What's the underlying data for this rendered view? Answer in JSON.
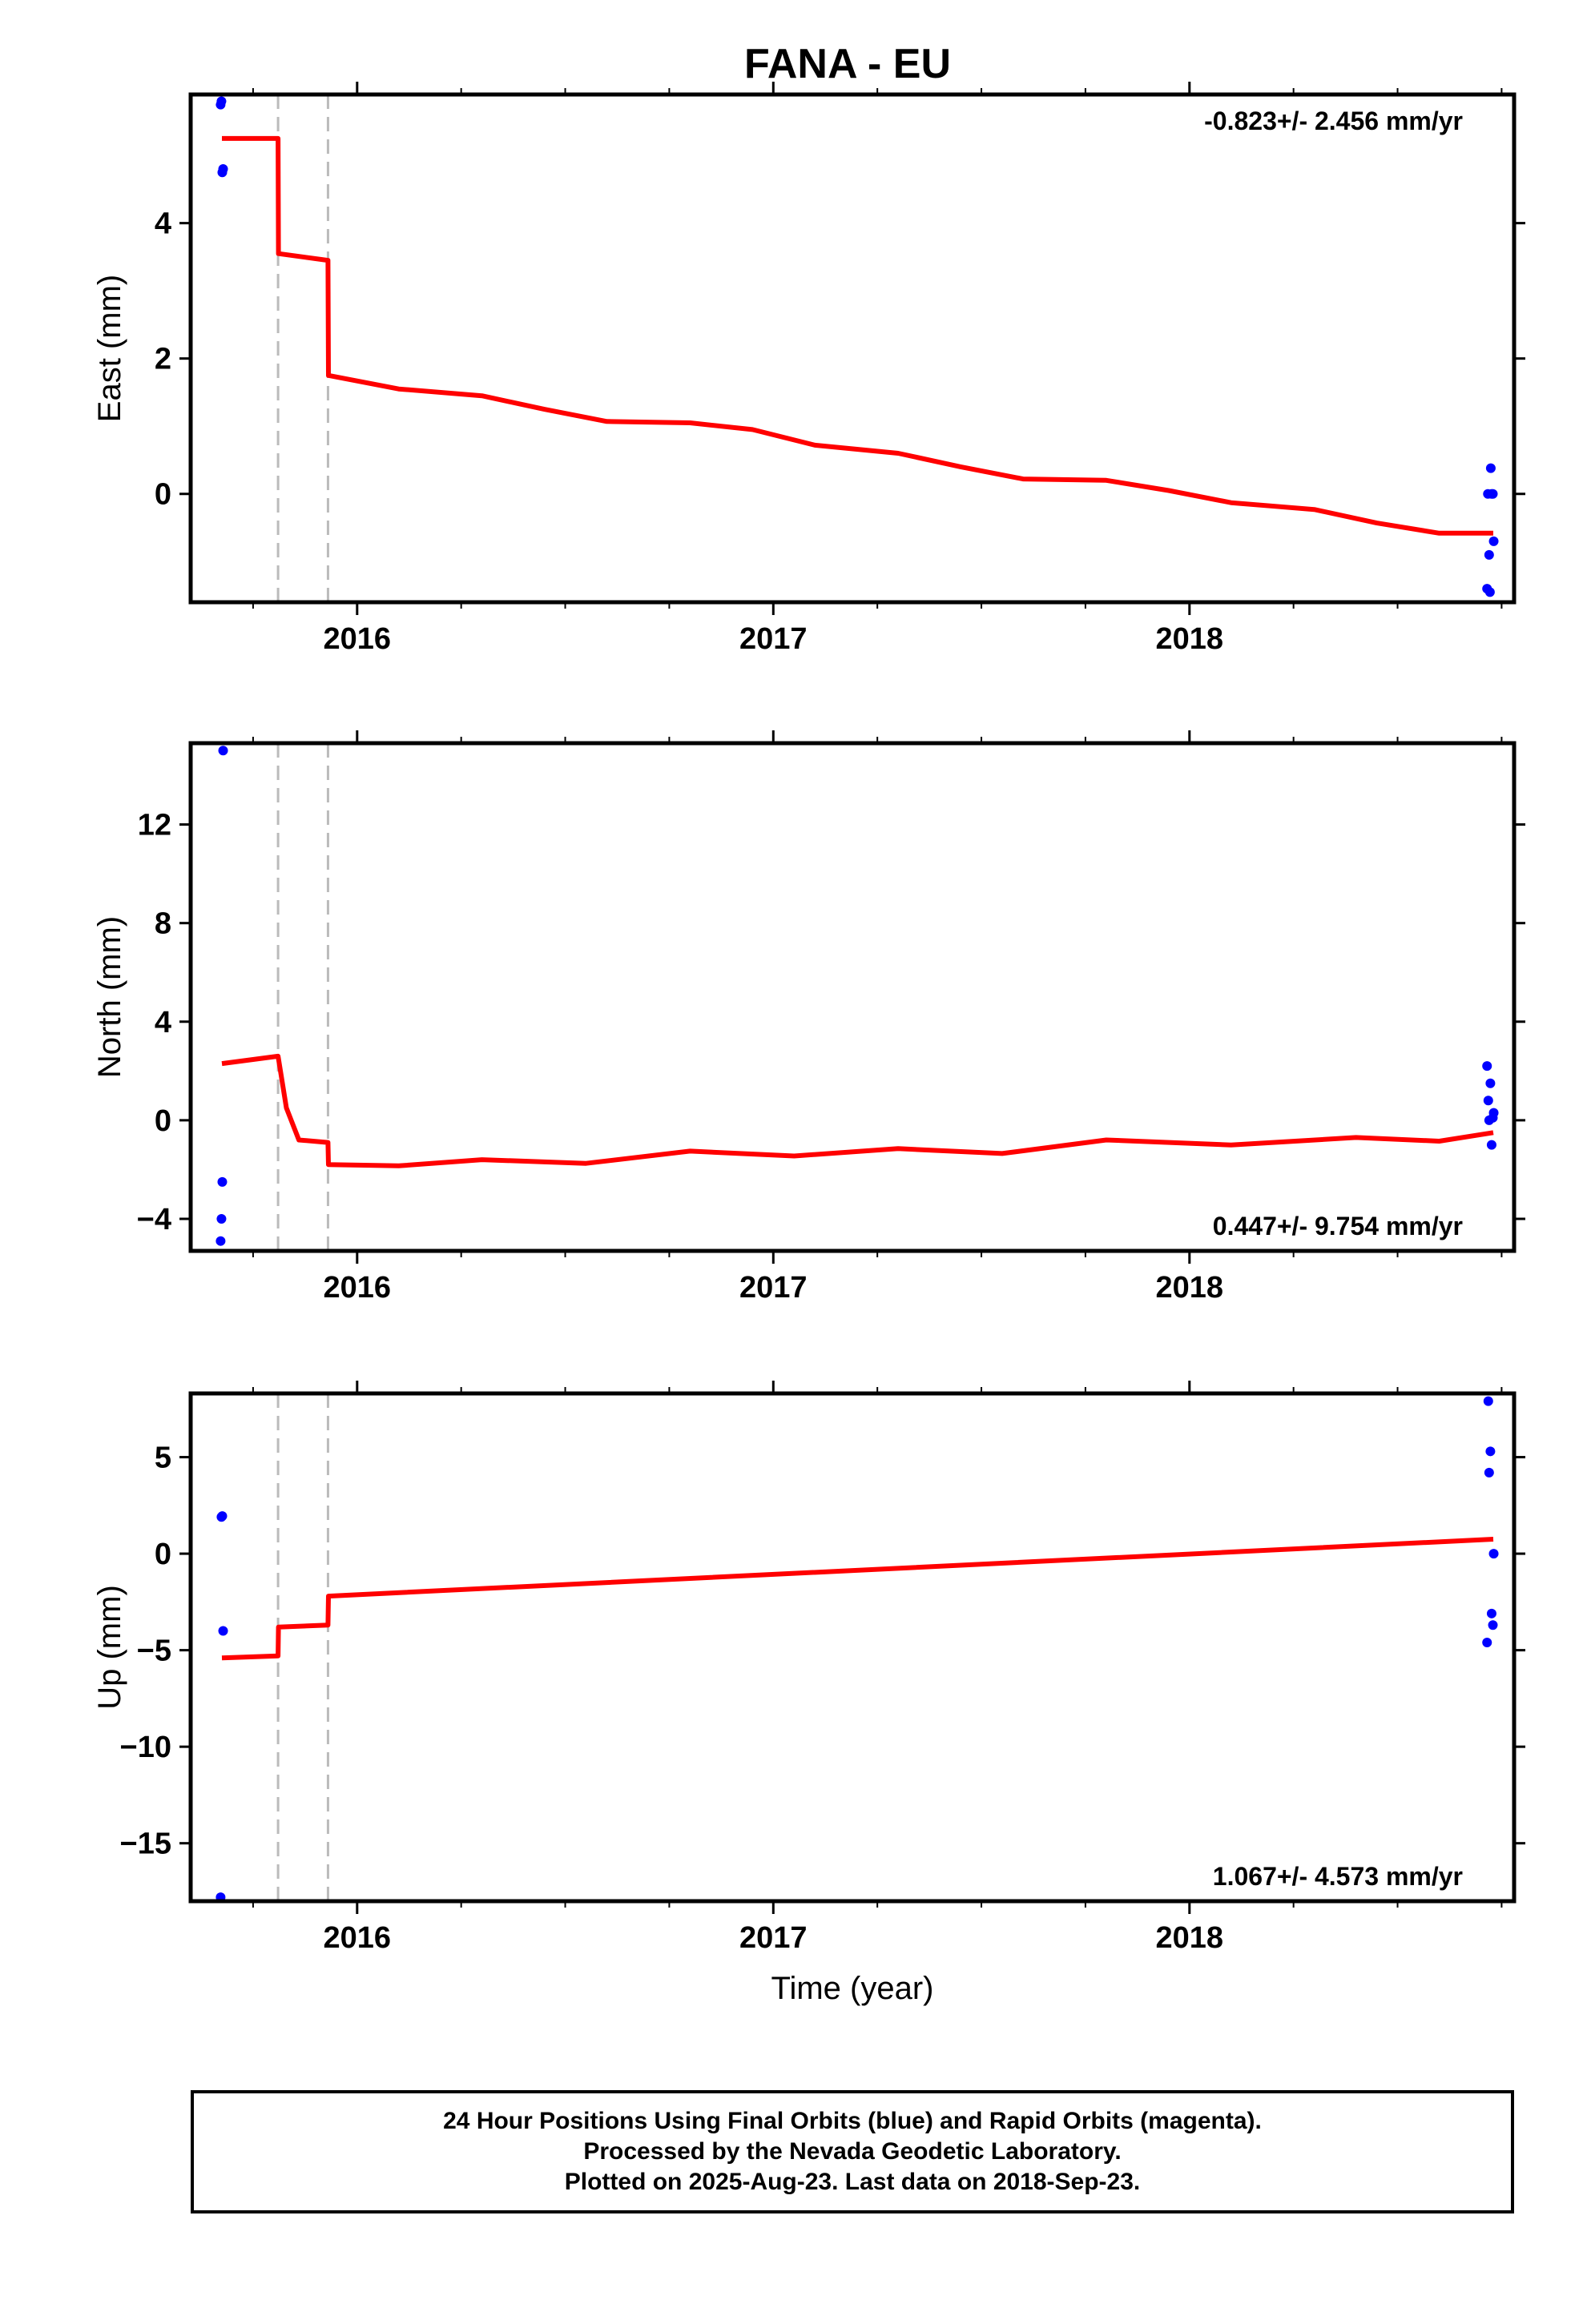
{
  "title": "FANA - EU",
  "chart_data": [
    {
      "type": "scatter",
      "panel": "east",
      "ylabel": "East (mm)",
      "xlim": [
        2015.6,
        2018.78
      ],
      "ylim": [
        -1.6,
        5.9
      ],
      "yticks": [
        0,
        2,
        4
      ],
      "xticks": [
        2016,
        2017,
        2018
      ],
      "xticks_minor": [
        2015.75,
        2016.25,
        2016.5,
        2016.75,
        2017.25,
        2017.5,
        2017.75,
        2018.25,
        2018.5,
        2018.75
      ],
      "rate_label": "-0.823+/- 2.456 mm/yr",
      "rate_position": "top-right",
      "series": [
        {
          "name": "",
          "color": "#0000ff",
          "kind": "points",
          "x": [
            2015.672,
            2015.674,
            2015.676,
            2015.678,
            2018.715,
            2018.717,
            2018.72,
            2018.722,
            2018.724,
            2018.726,
            2018.729,
            2018.731
          ],
          "y": [
            5.75,
            5.8,
            4.75,
            4.8,
            -1.4,
            0.0,
            -0.9,
            -1.45,
            0.38,
            0.0,
            0.0,
            -0.7
          ]
        },
        {
          "name": "",
          "color": "#ff0000",
          "kind": "line",
          "x": [
            2015.675,
            2015.81,
            2015.811,
            2015.93,
            2015.931,
            2016.1,
            2016.3,
            2016.45,
            2016.6,
            2016.8,
            2016.95,
            2017.1,
            2017.3,
            2017.45,
            2017.6,
            2017.8,
            2017.95,
            2018.1,
            2018.3,
            2018.45,
            2018.6,
            2018.73
          ],
          "y": [
            5.25,
            5.25,
            3.55,
            3.45,
            1.75,
            1.55,
            1.45,
            1.25,
            1.07,
            1.05,
            0.95,
            0.72,
            0.6,
            0.4,
            0.22,
            0.2,
            0.05,
            -0.13,
            -0.23,
            -0.43,
            -0.58,
            -0.58
          ]
        }
      ]
    },
    {
      "type": "scatter",
      "panel": "north",
      "ylabel": "North (mm)",
      "xlim": [
        2015.6,
        2018.78
      ],
      "ylim": [
        -5.3,
        15.3
      ],
      "yticks": [
        -4,
        0,
        4,
        8,
        12
      ],
      "tick_labels": [
        "−4",
        "0",
        "4",
        "8",
        "12"
      ],
      "xticks": [
        2016,
        2017,
        2018
      ],
      "xticks_minor": [
        2015.75,
        2016.25,
        2016.5,
        2016.75,
        2017.25,
        2017.5,
        2017.75,
        2018.25,
        2018.5,
        2018.75
      ],
      "rate_label": "0.447+/- 9.754 mm/yr",
      "rate_position": "bottom-right",
      "series": [
        {
          "name": "",
          "color": "#0000ff",
          "kind": "points",
          "x": [
            2015.672,
            2015.674,
            2015.676,
            2015.678,
            2018.715,
            2018.718,
            2018.72,
            2018.723,
            2018.726,
            2018.729,
            2018.731
          ],
          "y": [
            -4.9,
            -4.0,
            -2.5,
            15.0,
            2.2,
            0.8,
            0.0,
            1.5,
            -1.0,
            0.1,
            0.3
          ]
        },
        {
          "name": "",
          "color": "#ff0000",
          "kind": "line",
          "x": [
            2015.675,
            2015.81,
            2015.811,
            2015.83,
            2015.86,
            2015.93,
            2015.931,
            2016.1,
            2016.3,
            2016.55,
            2016.8,
            2017.05,
            2017.3,
            2017.55,
            2017.8,
            2018.1,
            2018.4,
            2018.6,
            2018.73
          ],
          "y": [
            2.3,
            2.6,
            2.5,
            0.5,
            -0.8,
            -0.9,
            -1.8,
            -1.85,
            -1.6,
            -1.75,
            -1.25,
            -1.45,
            -1.15,
            -1.35,
            -0.8,
            -1.0,
            -0.7,
            -0.85,
            -0.5
          ]
        }
      ]
    },
    {
      "type": "scatter",
      "panel": "up",
      "ylabel": "Up (mm)",
      "xlabel": "Time (year)",
      "xlim": [
        2015.6,
        2018.78
      ],
      "ylim": [
        -18.0,
        8.3
      ],
      "yticks": [
        -15,
        -10,
        -5,
        0,
        5
      ],
      "tick_labels": [
        "−15",
        "−10",
        "−5",
        "0",
        "5"
      ],
      "xticks": [
        2016,
        2017,
        2018
      ],
      "xticks_minor": [
        2015.75,
        2016.25,
        2016.5,
        2016.75,
        2017.25,
        2017.5,
        2017.75,
        2018.25,
        2018.5,
        2018.75
      ],
      "rate_label": "1.067+/- 4.573 mm/yr",
      "rate_position": "bottom-right",
      "series": [
        {
          "name": "",
          "color": "#0000ff",
          "kind": "points",
          "x": [
            2015.672,
            2015.674,
            2015.676,
            2015.678,
            2018.715,
            2018.718,
            2018.72,
            2018.723,
            2018.726,
            2018.729,
            2018.731
          ],
          "y": [
            -17.8,
            1.9,
            1.95,
            -4.0,
            -4.6,
            7.9,
            4.2,
            5.3,
            -3.1,
            -3.7,
            0.0
          ]
        },
        {
          "name": "",
          "color": "#ff0000",
          "kind": "line",
          "x": [
            2015.675,
            2015.81,
            2015.811,
            2015.93,
            2015.931,
            2018.73
          ],
          "y": [
            -5.4,
            -5.3,
            -3.8,
            -3.7,
            -2.2,
            0.75
          ]
        }
      ]
    }
  ],
  "offset_lines_x": [
    2015.81,
    2015.93
  ],
  "caption": {
    "line1": "24 Hour Positions Using Final Orbits (blue) and Rapid Orbits (magenta).",
    "line2": "Processed by the Nevada Geodetic Laboratory.",
    "line3": "Plotted on 2025-Aug-23. Last data on 2018-Sep-23."
  }
}
